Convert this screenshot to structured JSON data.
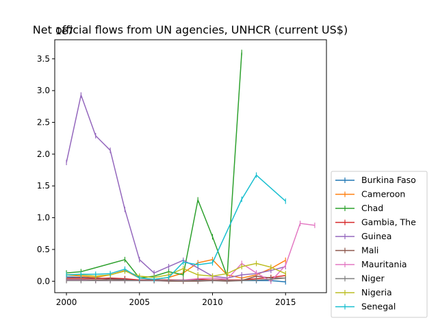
{
  "chart_data": {
    "type": "line",
    "title": "Net official flows from UN agencies, UNHCR (current US$)",
    "xlabel": "",
    "ylabel": "",
    "y_offset_label": "1e7",
    "xlim": [
      1999.2,
      2017.8
    ],
    "ylim": [
      -0.18,
      3.8
    ],
    "x_ticks": [
      2000,
      2005,
      2010,
      2015
    ],
    "y_ticks": [
      0.0,
      0.5,
      1.0,
      1.5,
      2.0,
      2.5,
      3.0,
      3.5
    ],
    "grid": false,
    "legend_position": "lower-right-outside",
    "marker": "|",
    "series": [
      {
        "name": "Burkina Faso",
        "color": "#1f77b4",
        "points": [
          [
            2000,
            0.07
          ],
          [
            2001,
            0.06
          ],
          [
            2002,
            0.05
          ],
          [
            2003,
            0.04
          ],
          [
            2004,
            0.03
          ],
          [
            2005,
            0.02
          ],
          [
            2006,
            0.02
          ],
          [
            2007,
            0.02
          ],
          [
            2008,
            0.02
          ],
          [
            2009,
            0.02
          ],
          [
            2010,
            0.02
          ],
          [
            2011,
            0.02
          ],
          [
            2012,
            0.01
          ],
          [
            2013,
            0.01
          ],
          [
            2014,
            0.01
          ],
          [
            2015,
            -0.01
          ]
        ]
      },
      {
        "name": "Cameroon",
        "color": "#ff7f0e",
        "points": [
          [
            2000,
            0.1
          ],
          [
            2001,
            0.08
          ],
          [
            2002,
            0.06
          ],
          [
            2003,
            0.1
          ],
          [
            2004,
            0.17
          ],
          [
            2005,
            0.05
          ],
          [
            2006,
            0.03
          ],
          [
            2007,
            0.06
          ],
          [
            2008,
            0.13
          ],
          [
            2009,
            0.29
          ],
          [
            2010,
            0.34
          ],
          [
            2011,
            0.1
          ],
          [
            2012,
            0.05
          ],
          [
            2013,
            0.1
          ],
          [
            2014,
            0.2
          ],
          [
            2015,
            0.33
          ]
        ]
      },
      {
        "name": "Chad",
        "color": "#2ca02c",
        "points": [
          [
            2000,
            0.13
          ],
          [
            2001,
            0.15
          ],
          [
            2004,
            0.34
          ],
          [
            2005,
            0.05
          ],
          [
            2006,
            0.08
          ],
          [
            2007,
            0.15
          ],
          [
            2008,
            0.1
          ],
          [
            2009,
            1.28
          ],
          [
            2010,
            0.7
          ],
          [
            2011,
            0.08
          ],
          [
            2012,
            3.6
          ]
        ]
      },
      {
        "name": "Gambia, The",
        "color": "#d62728",
        "points": [
          [
            2000,
            0.05
          ],
          [
            2001,
            0.05
          ],
          [
            2002,
            0.04
          ],
          [
            2003,
            0.05
          ],
          [
            2004,
            0.04
          ],
          [
            2005,
            0.02
          ],
          [
            2006,
            0.02
          ],
          [
            2007,
            0.02
          ],
          [
            2008,
            0.02
          ],
          [
            2009,
            0.03
          ],
          [
            2010,
            0.02
          ],
          [
            2011,
            0.02
          ],
          [
            2012,
            0.02
          ],
          [
            2013,
            0.04
          ],
          [
            2014,
            0.06
          ],
          [
            2015,
            0.09
          ]
        ]
      },
      {
        "name": "Guinea",
        "color": "#9467bd",
        "points": [
          [
            2000,
            1.87
          ],
          [
            2001,
            2.93
          ],
          [
            2002,
            2.29
          ],
          [
            2003,
            2.06
          ],
          [
            2004,
            1.13
          ],
          [
            2005,
            0.34
          ],
          [
            2006,
            0.13
          ],
          [
            2007,
            0.23
          ],
          [
            2008,
            0.33
          ],
          [
            2009,
            0.21
          ],
          [
            2010,
            0.08
          ],
          [
            2011,
            0.05
          ],
          [
            2012,
            0.1
          ],
          [
            2013,
            0.12
          ],
          [
            2014,
            0.17
          ],
          [
            2015,
            0.23
          ]
        ]
      },
      {
        "name": "Mali",
        "color": "#8c564b",
        "points": [
          [
            2000,
            0.03
          ],
          [
            2001,
            0.03
          ],
          [
            2002,
            0.02
          ],
          [
            2003,
            0.03
          ],
          [
            2004,
            0.02
          ],
          [
            2005,
            0.01
          ],
          [
            2006,
            0.01
          ],
          [
            2007,
            0.0
          ],
          [
            2008,
            0.0
          ],
          [
            2009,
            0.0
          ],
          [
            2010,
            0.01
          ],
          [
            2011,
            0.0
          ],
          [
            2012,
            0.01
          ],
          [
            2013,
            0.08
          ],
          [
            2014,
            0.05
          ],
          [
            2015,
            0.05
          ]
        ]
      },
      {
        "name": "Mauritania",
        "color": "#e377c2",
        "points": [
          [
            2000,
            0.02
          ],
          [
            2001,
            0.02
          ],
          [
            2002,
            0.01
          ],
          [
            2003,
            0.01
          ],
          [
            2004,
            0.01
          ],
          [
            2005,
            0.01
          ],
          [
            2006,
            0.01
          ],
          [
            2007,
            0.01
          ],
          [
            2008,
            0.02
          ],
          [
            2009,
            0.04
          ],
          [
            2010,
            0.05
          ],
          [
            2011,
            0.03
          ],
          [
            2012,
            0.28
          ],
          [
            2013,
            0.13
          ],
          [
            2014,
            0.0
          ],
          [
            2015,
            0.25
          ],
          [
            2016,
            0.91
          ],
          [
            2017,
            0.88
          ]
        ]
      },
      {
        "name": "Niger",
        "color": "#7f7f7f",
        "points": [
          [
            2000,
            0.01
          ],
          [
            2001,
            0.01
          ],
          [
            2002,
            0.01
          ],
          [
            2003,
            0.01
          ],
          [
            2004,
            0.01
          ],
          [
            2005,
            0.01
          ],
          [
            2006,
            0.01
          ],
          [
            2007,
            0.01
          ],
          [
            2008,
            0.01
          ],
          [
            2009,
            0.01
          ],
          [
            2010,
            0.01
          ],
          [
            2011,
            0.01
          ],
          [
            2012,
            0.01
          ],
          [
            2013,
            0.02
          ],
          [
            2014,
            0.03
          ],
          [
            2015,
            0.05
          ]
        ]
      },
      {
        "name": "Nigeria",
        "color": "#bcbd22",
        "points": [
          [
            2000,
            0.1
          ],
          [
            2001,
            0.1
          ],
          [
            2002,
            0.08
          ],
          [
            2003,
            0.1
          ],
          [
            2004,
            0.16
          ],
          [
            2005,
            0.08
          ],
          [
            2006,
            0.06
          ],
          [
            2007,
            0.1
          ],
          [
            2008,
            0.2
          ],
          [
            2009,
            0.1
          ],
          [
            2010,
            0.08
          ],
          [
            2011,
            0.12
          ],
          [
            2012,
            0.23
          ],
          [
            2013,
            0.28
          ],
          [
            2014,
            0.22
          ],
          [
            2015,
            0.12
          ]
        ]
      },
      {
        "name": "Senegal",
        "color": "#17becf",
        "points": [
          [
            2000,
            0.1
          ],
          [
            2001,
            0.11
          ],
          [
            2002,
            0.11
          ],
          [
            2003,
            0.12
          ],
          [
            2004,
            0.19
          ],
          [
            2005,
            0.05
          ],
          [
            2006,
            0.03
          ],
          [
            2007,
            0.06
          ],
          [
            2008,
            0.3
          ],
          [
            2009,
            0.26
          ],
          [
            2010,
            0.29
          ],
          [
            2012,
            1.29
          ],
          [
            2013,
            1.67
          ],
          [
            2015,
            1.26
          ]
        ]
      }
    ]
  }
}
